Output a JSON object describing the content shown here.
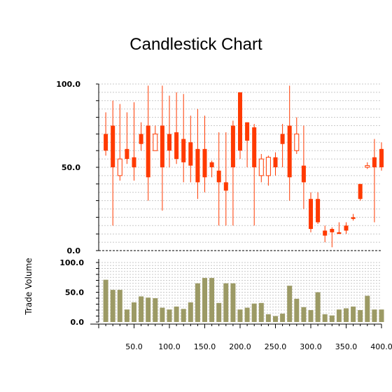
{
  "chart_data": [
    {
      "type": "candlestick",
      "title": "Candlestick Chart",
      "ylim": [
        0,
        100
      ],
      "y_ticks": [
        "0.0",
        "50.0",
        "100.0"
      ],
      "grid": true,
      "colors": {
        "down": "#ff3a00",
        "up_border": "#ff3a00",
        "up_fill": "#ffffff",
        "wick": "#ff3a00"
      },
      "candles": [
        {
          "x": 10,
          "open": 70,
          "close": 60,
          "high": 83,
          "low": 57
        },
        {
          "x": 20,
          "open": 75,
          "close": 50,
          "high": 90,
          "low": 15
        },
        {
          "x": 30,
          "open": 45,
          "close": 55,
          "high": 88,
          "low": 42
        },
        {
          "x": 40,
          "open": 61,
          "close": 55,
          "high": 83,
          "low": 52
        },
        {
          "x": 50,
          "open": 56,
          "close": 50,
          "high": 89,
          "low": 42
        },
        {
          "x": 60,
          "open": 70,
          "close": 64,
          "high": 77,
          "low": 60
        },
        {
          "x": 70,
          "open": 75,
          "close": 44,
          "high": 99,
          "low": 30
        },
        {
          "x": 80,
          "open": 60,
          "close": 70,
          "high": 75,
          "low": 60
        },
        {
          "x": 90,
          "open": 75,
          "close": 50,
          "high": 99,
          "low": 24
        },
        {
          "x": 100,
          "open": 70,
          "close": 60,
          "high": 93,
          "low": 50
        },
        {
          "x": 110,
          "open": 71,
          "close": 55,
          "high": 95,
          "low": 52
        },
        {
          "x": 120,
          "open": 67,
          "close": 53,
          "high": 94,
          "low": 41
        },
        {
          "x": 130,
          "open": 65,
          "close": 51,
          "high": 81,
          "low": 41
        },
        {
          "x": 140,
          "open": 61,
          "close": 41,
          "high": 85,
          "low": 31
        },
        {
          "x": 150,
          "open": 61,
          "close": 44,
          "high": 81,
          "low": 35
        },
        {
          "x": 160,
          "open": 53,
          "close": 50,
          "high": 54,
          "low": 44
        },
        {
          "x": 170,
          "open": 48,
          "close": 41,
          "high": 71,
          "low": 15
        },
        {
          "x": 180,
          "open": 41,
          "close": 36,
          "high": 71,
          "low": 15
        },
        {
          "x": 190,
          "open": 75,
          "close": 50,
          "high": 78,
          "low": 15
        },
        {
          "x": 200,
          "open": 95,
          "close": 60,
          "high": 95,
          "low": 55
        },
        {
          "x": 210,
          "open": 77,
          "close": 66,
          "high": 77,
          "low": 50
        },
        {
          "x": 220,
          "open": 74,
          "close": 50,
          "high": 76,
          "low": 15
        },
        {
          "x": 230,
          "open": 45,
          "close": 55,
          "high": 58,
          "low": 41
        },
        {
          "x": 240,
          "open": 45,
          "close": 56,
          "high": 57,
          "low": 39
        },
        {
          "x": 250,
          "open": 56,
          "close": 50,
          "high": 59,
          "low": 45
        },
        {
          "x": 260,
          "open": 70,
          "close": 64,
          "high": 76,
          "low": 50
        },
        {
          "x": 270,
          "open": 75,
          "close": 44,
          "high": 99,
          "low": 30
        },
        {
          "x": 280,
          "open": 60,
          "close": 70,
          "high": 80,
          "low": 58
        },
        {
          "x": 290,
          "open": 51,
          "close": 41,
          "high": 75,
          "low": 25
        },
        {
          "x": 300,
          "open": 31,
          "close": 13,
          "high": 35,
          "low": 11
        },
        {
          "x": 310,
          "open": 31,
          "close": 17,
          "high": 35,
          "low": 16
        },
        {
          "x": 320,
          "open": 12,
          "close": 9,
          "high": 15,
          "low": 5
        },
        {
          "x": 330,
          "open": 13,
          "close": 11,
          "high": 14,
          "low": 2
        },
        {
          "x": 340,
          "open": 11,
          "close": 10,
          "high": 17,
          "low": 10
        },
        {
          "x": 350,
          "open": 15,
          "close": 12,
          "high": 17,
          "low": 10
        },
        {
          "x": 360,
          "open": 20,
          "close": 19,
          "high": 22,
          "low": 18
        },
        {
          "x": 370,
          "open": 40,
          "close": 31,
          "high": 40,
          "low": 30
        },
        {
          "x": 380,
          "open": 50,
          "close": 51,
          "high": 53,
          "low": 49
        },
        {
          "x": 390,
          "open": 56,
          "close": 50,
          "high": 67,
          "low": 17
        },
        {
          "x": 400,
          "open": 61,
          "close": 50,
          "high": 65,
          "low": 48
        }
      ]
    },
    {
      "type": "bar",
      "ylabel": "Trade Volume",
      "ylim": [
        0,
        100
      ],
      "y_ticks": [
        "0.0",
        "50.0",
        "100.0"
      ],
      "xlim": [
        0,
        400
      ],
      "x_ticks": [
        "50.0",
        "100.0",
        "150.0",
        "200.0",
        "250.0",
        "300.0",
        "350.0",
        "400.0"
      ],
      "grid": true,
      "colors": {
        "bar": "#9c9a65"
      },
      "x": [
        10,
        20,
        30,
        40,
        50,
        60,
        70,
        80,
        90,
        100,
        110,
        120,
        130,
        140,
        150,
        160,
        170,
        180,
        190,
        200,
        210,
        220,
        230,
        240,
        250,
        260,
        270,
        280,
        290,
        300,
        310,
        320,
        330,
        340,
        350,
        360,
        370,
        380,
        390,
        400
      ],
      "values": [
        71,
        54,
        54,
        21,
        33,
        43,
        41,
        40,
        24,
        21,
        26,
        22,
        33,
        65,
        74,
        74,
        32,
        65,
        65,
        21,
        24,
        31,
        32,
        13,
        10,
        14,
        61,
        39,
        25,
        20,
        50,
        13,
        11,
        21,
        23,
        26,
        20,
        44,
        21,
        21
      ]
    }
  ]
}
